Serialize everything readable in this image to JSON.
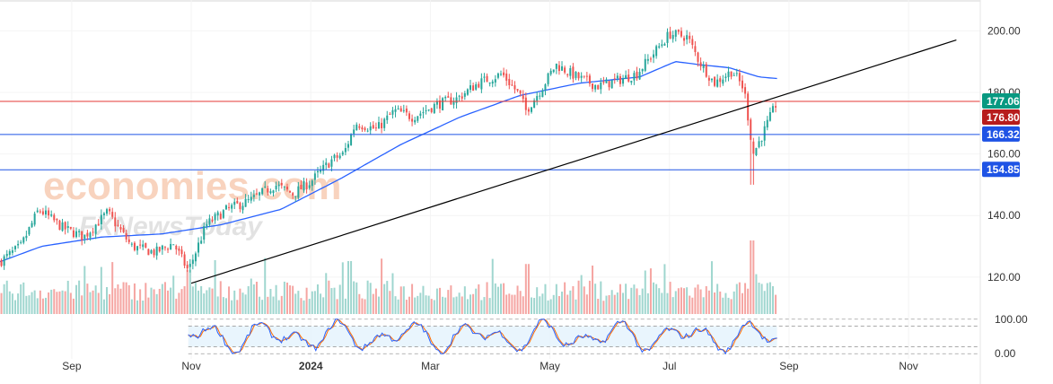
{
  "watermark": {
    "brand": "economies.com",
    "sub": "FXNewsToday"
  },
  "chart_data": {
    "type": "candlestick",
    "price_axis": {
      "ylim": [
        108,
        210
      ],
      "ticks": [
        120,
        140,
        160,
        180,
        200
      ],
      "tick_labels": [
        "120.00",
        "140.00",
        "160.00",
        "180.00",
        "200.00"
      ]
    },
    "time_axis": {
      "ticks": [
        {
          "label": "Sep",
          "t": 0.5
        },
        {
          "label": "Nov",
          "t": 2.5
        },
        {
          "label": "2024",
          "t": 4.5
        },
        {
          "label": "Mar",
          "t": 6.5
        },
        {
          "label": "May",
          "t": 8.5
        },
        {
          "label": "Jul",
          "t": 10.5
        },
        {
          "label": "Sep",
          "t": 12.5
        },
        {
          "label": "Nov",
          "t": 14.5
        }
      ],
      "xlim": [
        -0.7,
        15.7
      ]
    },
    "price_path": [
      {
        "t": -0.7,
        "p": 125
      },
      {
        "t": -0.35,
        "p": 130
      },
      {
        "t": -0.05,
        "p": 142
      },
      {
        "t": 0.35,
        "p": 136
      },
      {
        "t": 0.7,
        "p": 133
      },
      {
        "t": 1.1,
        "p": 141
      },
      {
        "t": 1.5,
        "p": 130
      },
      {
        "t": 1.9,
        "p": 128
      },
      {
        "t": 2.2,
        "p": 131
      },
      {
        "t": 2.45,
        "p": 122
      },
      {
        "t": 2.75,
        "p": 137
      },
      {
        "t": 3.1,
        "p": 142
      },
      {
        "t": 3.5,
        "p": 145
      },
      {
        "t": 3.9,
        "p": 150
      },
      {
        "t": 4.2,
        "p": 147
      },
      {
        "t": 4.5,
        "p": 151
      },
      {
        "t": 4.85,
        "p": 158
      },
      {
        "t": 5.05,
        "p": 160
      },
      {
        "t": 5.25,
        "p": 170
      },
      {
        "t": 5.6,
        "p": 168
      },
      {
        "t": 5.9,
        "p": 174
      },
      {
        "t": 6.2,
        "p": 172
      },
      {
        "t": 6.6,
        "p": 176
      },
      {
        "t": 6.95,
        "p": 178
      },
      {
        "t": 7.3,
        "p": 183
      },
      {
        "t": 7.7,
        "p": 186
      },
      {
        "t": 8.0,
        "p": 179
      },
      {
        "t": 8.1,
        "p": 174
      },
      {
        "t": 8.35,
        "p": 181
      },
      {
        "t": 8.6,
        "p": 189
      },
      {
        "t": 8.95,
        "p": 185
      },
      {
        "t": 9.3,
        "p": 182
      },
      {
        "t": 9.65,
        "p": 184
      },
      {
        "t": 9.95,
        "p": 186
      },
      {
        "t": 10.25,
        "p": 193
      },
      {
        "t": 10.5,
        "p": 199
      },
      {
        "t": 10.8,
        "p": 198
      },
      {
        "t": 11.0,
        "p": 190
      },
      {
        "t": 11.25,
        "p": 183
      },
      {
        "t": 11.55,
        "p": 187
      },
      {
        "t": 11.75,
        "p": 181
      },
      {
        "t": 11.9,
        "p": 160
      },
      {
        "t": 12.05,
        "p": 166
      },
      {
        "t": 12.3,
        "p": 177
      }
    ],
    "moving_average": [
      {
        "t": -0.7,
        "p": 125
      },
      {
        "t": 0.0,
        "p": 130
      },
      {
        "t": 1.0,
        "p": 133
      },
      {
        "t": 2.0,
        "p": 134
      },
      {
        "t": 3.0,
        "p": 137
      },
      {
        "t": 4.0,
        "p": 142
      },
      {
        "t": 5.0,
        "p": 152
      },
      {
        "t": 6.0,
        "p": 163
      },
      {
        "t": 7.0,
        "p": 172
      },
      {
        "t": 8.0,
        "p": 179
      },
      {
        "t": 9.0,
        "p": 183
      },
      {
        "t": 10.0,
        "p": 185
      },
      {
        "t": 10.6,
        "p": 190
      },
      {
        "t": 11.0,
        "p": 189
      },
      {
        "t": 11.5,
        "p": 188
      },
      {
        "t": 12.0,
        "p": 185
      },
      {
        "t": 12.3,
        "p": 184.5
      }
    ],
    "trendline": {
      "from": {
        "t": 2.5,
        "p": 118
      },
      "to": {
        "t": 15.3,
        "p": 197
      }
    },
    "horizontal_levels": [
      {
        "value": 177.06,
        "label": "177.06",
        "color": "#089981",
        "line": "#e53935"
      },
      {
        "value": 176.8,
        "label": "176.80",
        "color": "#b71c1c",
        "line": "none"
      },
      {
        "value": 166.32,
        "label": "166.32",
        "color": "#1e53e5",
        "line": "#1e53e5"
      },
      {
        "value": 154.85,
        "label": "154.85",
        "color": "#1e53e5",
        "line": "#1e53e5"
      }
    ],
    "volume": {
      "max_rel": 1.0
    },
    "oscillator": {
      "ylim": [
        -15,
        115
      ],
      "ticks": [
        100,
        0
      ],
      "tick_labels": [
        "100.00",
        "0.00"
      ],
      "band": [
        20,
        80
      ],
      "start_t": 2.45,
      "end_t": 12.3
    },
    "colors": {
      "up": "#26a69a",
      "down": "#ef5350",
      "ma": "#2962ff",
      "k": "#2962ff",
      "d": "#ff6d00",
      "trend": "#000000"
    }
  }
}
